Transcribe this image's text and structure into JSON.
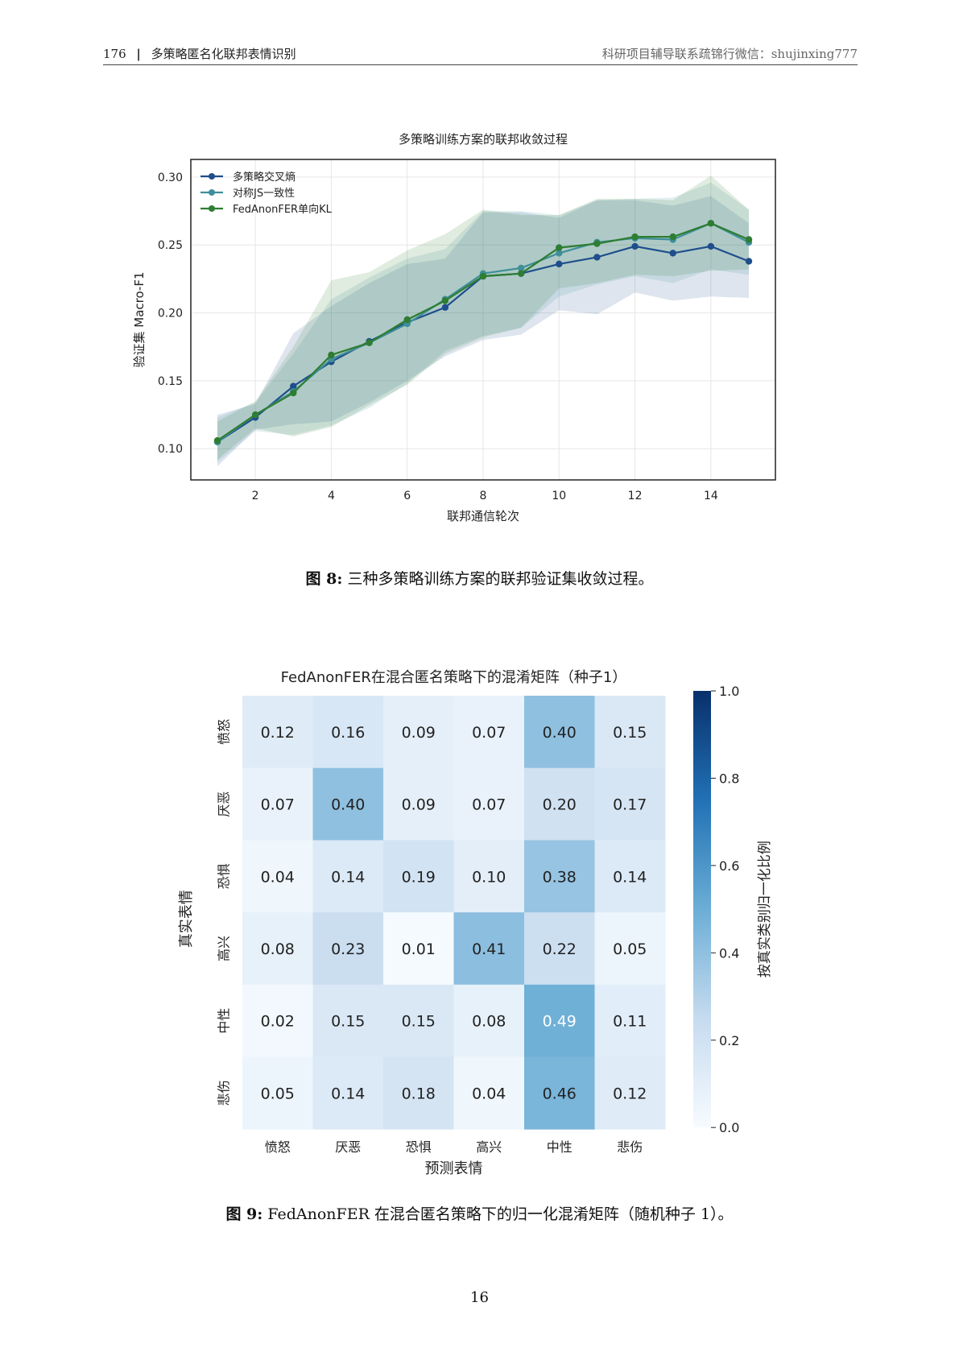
{
  "header": {
    "page_number": "176",
    "separator": "|",
    "title": "多策略匿名化联邦表情识别",
    "right_text": "科研项目辅导联系疏锦行微信：shujinxing777"
  },
  "figure1": {
    "caption_label": "图 8:",
    "caption_text": "三种多策略训练方案的联邦验证集收敛过程。"
  },
  "figure2": {
    "caption_label": "图 9:",
    "caption_text": "FedAnonFER 在混合匿名策略下的归一化混淆矩阵（随机种子 1）。"
  },
  "footer": {
    "page_number": "16"
  },
  "chart_data": [
    {
      "type": "line",
      "title": "多策略训练方案的联邦收敛过程",
      "xlabel": "联邦通信轮次",
      "ylabel": "验证集 Macro-F1",
      "x": [
        1,
        2,
        3,
        4,
        5,
        6,
        7,
        8,
        9,
        10,
        11,
        12,
        13,
        14,
        15
      ],
      "xticks": [
        2,
        4,
        6,
        8,
        10,
        12,
        14
      ],
      "yticks": [
        0.1,
        0.15,
        0.2,
        0.25,
        0.3
      ],
      "xlim": [
        0.3,
        15.7
      ],
      "ylim": [
        0.077,
        0.313
      ],
      "grid": true,
      "legend_position": "top-left",
      "series": [
        {
          "name": "多策略交叉熵",
          "color": "#1f4e8c",
          "values": [
            0.105,
            0.123,
            0.146,
            0.164,
            0.179,
            0.193,
            0.204,
            0.227,
            0.229,
            0.236,
            0.241,
            0.249,
            0.244,
            0.249,
            0.238
          ],
          "lower": [
            0.087,
            0.114,
            0.118,
            0.12,
            0.134,
            0.15,
            0.168,
            0.18,
            0.184,
            0.202,
            0.199,
            0.215,
            0.209,
            0.212,
            0.211
          ],
          "upper": [
            0.125,
            0.133,
            0.185,
            0.205,
            0.222,
            0.236,
            0.24,
            0.274,
            0.274,
            0.27,
            0.283,
            0.283,
            0.279,
            0.286,
            0.266
          ]
        },
        {
          "name": "对称JS一致性",
          "color": "#3f8f9a",
          "values": [
            0.105,
            0.125,
            0.142,
            0.166,
            0.178,
            0.192,
            0.21,
            0.229,
            0.233,
            0.244,
            0.252,
            0.255,
            0.254,
            0.266,
            0.252
          ],
          "lower": [
            0.09,
            0.113,
            0.11,
            0.117,
            0.13,
            0.148,
            0.172,
            0.183,
            0.189,
            0.212,
            0.221,
            0.227,
            0.222,
            0.232,
            0.228
          ],
          "upper": [
            0.123,
            0.134,
            0.17,
            0.21,
            0.226,
            0.24,
            0.247,
            0.275,
            0.275,
            0.272,
            0.283,
            0.284,
            0.285,
            0.296,
            0.276
          ]
        },
        {
          "name": "FedAnonFER单向KL",
          "color": "#2e7d32",
          "values": [
            0.106,
            0.125,
            0.141,
            0.169,
            0.178,
            0.195,
            0.209,
            0.227,
            0.229,
            0.248,
            0.251,
            0.256,
            0.256,
            0.266,
            0.254
          ],
          "lower": [
            0.092,
            0.115,
            0.109,
            0.116,
            0.132,
            0.147,
            0.17,
            0.182,
            0.189,
            0.218,
            0.222,
            0.228,
            0.227,
            0.231,
            0.232
          ],
          "upper": [
            0.12,
            0.135,
            0.175,
            0.224,
            0.23,
            0.246,
            0.258,
            0.276,
            0.272,
            0.272,
            0.284,
            0.284,
            0.283,
            0.301,
            0.276
          ]
        }
      ]
    },
    {
      "type": "heatmap",
      "title": "FedAnonFER在混合匿名策略下的混淆矩阵（种子1）",
      "xlabel": "预测表情",
      "ylabel": "真实表情",
      "x_categories": [
        "愤怒",
        "厌恶",
        "恐惧",
        "高兴",
        "中性",
        "悲伤"
      ],
      "y_categories": [
        "愤怒",
        "厌恶",
        "恐惧",
        "高兴",
        "中性",
        "悲伤"
      ],
      "values": [
        [
          0.12,
          0.16,
          0.09,
          0.07,
          0.4,
          0.15
        ],
        [
          0.07,
          0.4,
          0.09,
          0.07,
          0.2,
          0.17
        ],
        [
          0.04,
          0.14,
          0.19,
          0.1,
          0.38,
          0.14
        ],
        [
          0.08,
          0.23,
          0.01,
          0.41,
          0.22,
          0.05
        ],
        [
          0.02,
          0.15,
          0.15,
          0.08,
          0.49,
          0.11
        ],
        [
          0.05,
          0.14,
          0.18,
          0.04,
          0.46,
          0.12
        ]
      ],
      "colorbar": {
        "label": "按真实类别归一化比例",
        "range": [
          0.0,
          1.0
        ],
        "ticks": [
          "0.0",
          "0.2",
          "0.4",
          "0.6",
          "0.8",
          "1.0"
        ],
        "colormap": "Blues"
      }
    }
  ]
}
